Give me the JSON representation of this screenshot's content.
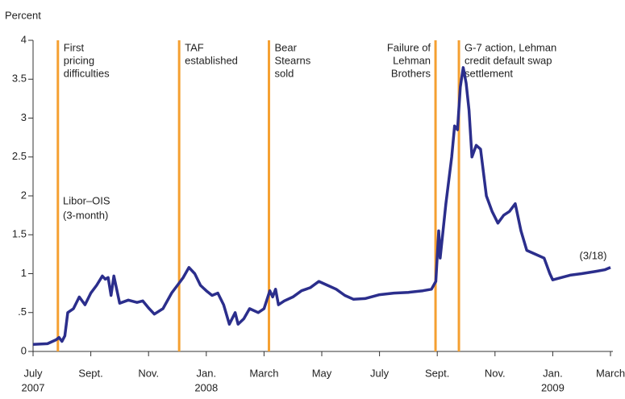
{
  "chart_data": {
    "type": "line",
    "y_label": "Percent",
    "color": "#2b2e8c",
    "event_color": "#f5a031",
    "x": [
      0,
      0.5,
      0.8,
      0.9,
      1.0,
      1.1,
      1.2,
      1.4,
      1.6,
      1.8,
      2.0,
      2.2,
      2.4,
      2.5,
      2.6,
      2.7,
      2.8,
      3.0,
      3.3,
      3.6,
      3.8,
      4.0,
      4.2,
      4.5,
      4.8,
      5.0,
      5.2,
      5.4,
      5.6,
      5.8,
      6.0,
      6.2,
      6.4,
      6.6,
      6.8,
      7.0,
      7.1,
      7.3,
      7.5,
      7.8,
      8.0,
      8.2,
      8.3,
      8.4,
      8.5,
      8.7,
      9.0,
      9.3,
      9.6,
      9.9,
      10.2,
      10.5,
      10.8,
      11.1,
      11.5,
      12.0,
      12.5,
      13.0,
      13.5,
      13.8,
      13.95,
      14.05,
      14.1,
      14.3,
      14.5,
      14.6,
      14.7,
      14.8,
      14.9,
      15.0,
      15.1,
      15.2,
      15.35,
      15.5,
      15.7,
      15.9,
      16.1,
      16.3,
      16.5,
      16.7,
      16.9,
      17.1,
      17.4,
      17.7,
      17.9,
      18.0,
      18.3,
      18.6,
      19.0,
      19.5,
      19.8,
      20.0
    ],
    "values": [
      0.09,
      0.1,
      0.15,
      0.18,
      0.13,
      0.2,
      0.5,
      0.55,
      0.7,
      0.6,
      0.75,
      0.85,
      0.97,
      0.93,
      0.95,
      0.72,
      0.97,
      0.62,
      0.66,
      0.63,
      0.65,
      0.56,
      0.48,
      0.55,
      0.75,
      0.85,
      0.95,
      1.08,
      1.0,
      0.85,
      0.78,
      0.72,
      0.75,
      0.6,
      0.35,
      0.5,
      0.35,
      0.42,
      0.55,
      0.5,
      0.55,
      0.78,
      0.7,
      0.8,
      0.6,
      0.65,
      0.7,
      0.78,
      0.82,
      0.9,
      0.85,
      0.8,
      0.72,
      0.67,
      0.68,
      0.73,
      0.75,
      0.76,
      0.78,
      0.8,
      0.9,
      1.55,
      1.2,
      1.9,
      2.5,
      2.9,
      2.85,
      3.4,
      3.65,
      3.45,
      3.1,
      2.5,
      2.65,
      2.6,
      2.0,
      1.8,
      1.65,
      1.75,
      1.8,
      1.9,
      1.55,
      1.3,
      1.25,
      1.2,
      1.0,
      0.92,
      0.95,
      0.98,
      1.0,
      1.03,
      1.05,
      1.08
    ],
    "xlim": [
      0,
      20
    ],
    "xticks": [
      {
        "value": 0,
        "label": "July"
      },
      {
        "value": 2,
        "label": "Sept."
      },
      {
        "value": 4,
        "label": "Nov."
      },
      {
        "value": 6,
        "label": "Jan."
      },
      {
        "value": 8,
        "label": "March"
      },
      {
        "value": 10,
        "label": "May"
      },
      {
        "value": 12,
        "label": "July"
      },
      {
        "value": 14,
        "label": "Sept."
      },
      {
        "value": 16,
        "label": "Nov."
      },
      {
        "value": 18,
        "label": "Jan."
      },
      {
        "value": 20,
        "label": "March"
      }
    ],
    "xtick_years": [
      {
        "value": 0,
        "label": "2007"
      },
      {
        "value": 6,
        "label": "2008"
      },
      {
        "value": 18,
        "label": "2009"
      }
    ],
    "ylim": [
      0,
      4
    ],
    "yticks": [
      0,
      {
        "value": 0.5,
        "label": ".5"
      },
      1,
      1.5,
      2,
      2.5,
      3,
      3.5,
      4
    ],
    "events": [
      {
        "x": 0.86,
        "lines": [
          "First",
          "pricing",
          "difficulties"
        ]
      },
      {
        "x": 5.06,
        "lines": [
          "TAF",
          "established"
        ]
      },
      {
        "x": 8.17,
        "lines": [
          "Bear",
          "Stearns",
          "sold"
        ]
      },
      {
        "x": 13.94,
        "lines": [
          "Failure of",
          "Lehman",
          "Brothers"
        ]
      },
      {
        "x": 14.75,
        "lines": [
          "G-7 action, Lehman",
          "credit default swap",
          "settlement"
        ]
      }
    ],
    "series_label": [
      "Libor–OIS",
      "(3-month)"
    ],
    "end_label": "(3/18)"
  }
}
